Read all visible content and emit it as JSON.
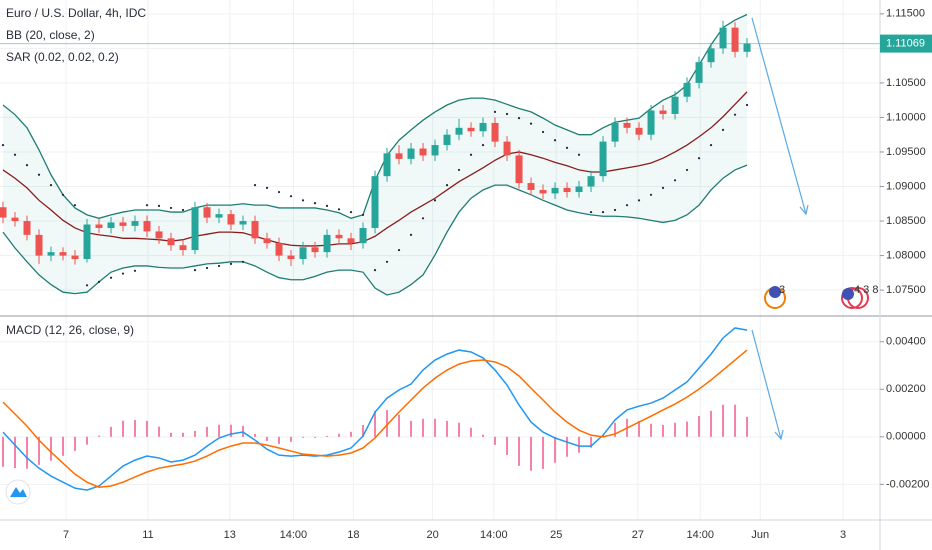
{
  "chart_data": [
    {
      "type": "candlestick",
      "title": "Euro / U.S. Dollar, 4h, IDC",
      "x": [
        0,
        1,
        2,
        3,
        4,
        5,
        6,
        7,
        8,
        9,
        10,
        11,
        12,
        13,
        14,
        15,
        16,
        17,
        18,
        19,
        20,
        21,
        22,
        23,
        24,
        25,
        26,
        27,
        28,
        29,
        30,
        31,
        32,
        33,
        34,
        35,
        36,
        37,
        38,
        39,
        40,
        41,
        42,
        43,
        44,
        45,
        46,
        47,
        48,
        49,
        50,
        51,
        52,
        53,
        54,
        55,
        56,
        57,
        58,
        59,
        60,
        61,
        62
      ],
      "open": [
        1.087,
        1.0855,
        1.085,
        1.083,
        1.08,
        1.0805,
        1.08,
        1.0795,
        1.0845,
        1.084,
        1.0848,
        1.0843,
        1.085,
        1.0835,
        1.0825,
        1.0815,
        1.0808,
        1.087,
        1.0855,
        1.086,
        1.0845,
        1.085,
        1.0825,
        1.0818,
        1.08,
        1.0795,
        1.0812,
        1.0805,
        1.083,
        1.0825,
        1.0818,
        1.084,
        1.0915,
        1.0948,
        1.094,
        1.0955,
        1.0945,
        1.096,
        1.0975,
        1.0985,
        1.098,
        1.0992,
        1.0965,
        1.0945,
        1.0905,
        1.0895,
        1.089,
        1.0898,
        1.0892,
        1.09,
        1.0915,
        1.0965,
        1.0992,
        1.0985,
        1.0975,
        1.101,
        1.1005,
        1.103,
        1.105,
        1.108,
        1.11,
        1.113,
        1.1095
      ],
      "high": [
        1.0878,
        1.0863,
        1.0858,
        1.0838,
        1.0813,
        1.0812,
        1.0808,
        1.0853,
        1.0853,
        1.0856,
        1.0856,
        1.0858,
        1.0858,
        1.0843,
        1.0833,
        1.0823,
        1.0878,
        1.0876,
        1.0868,
        1.0866,
        1.0858,
        1.0858,
        1.0833,
        1.0826,
        1.0808,
        1.082,
        1.082,
        1.0838,
        1.0838,
        1.0833,
        1.0848,
        1.0923,
        1.0956,
        1.096,
        1.0963,
        1.0963,
        1.0968,
        1.0983,
        1.0998,
        1.0993,
        1.1,
        1.1,
        1.0973,
        1.0953,
        1.0913,
        1.0903,
        1.0906,
        1.0906,
        1.0908,
        1.0923,
        1.0973,
        1.1,
        1.1,
        1.0993,
        1.1018,
        1.1018,
        1.1038,
        1.1058,
        1.1088,
        1.1108,
        1.114,
        1.1138,
        1.1115
      ],
      "low": [
        1.0847,
        1.0842,
        1.0822,
        1.0788,
        1.0792,
        1.0793,
        1.0787,
        1.079,
        1.0833,
        1.0832,
        1.0835,
        1.0835,
        1.0827,
        1.0817,
        1.0807,
        1.08,
        1.0802,
        1.0847,
        1.0847,
        1.0837,
        1.0837,
        1.0817,
        1.081,
        1.0792,
        1.0785,
        1.0787,
        1.0797,
        1.0797,
        1.0817,
        1.0808,
        1.081,
        1.0832,
        1.0907,
        1.0932,
        1.0932,
        1.0937,
        1.0937,
        1.0952,
        1.0967,
        1.0972,
        1.0972,
        1.0957,
        1.0937,
        1.0897,
        1.0887,
        1.0882,
        1.0882,
        1.0884,
        1.0884,
        1.0892,
        1.0907,
        1.0957,
        1.0977,
        1.0967,
        1.0967,
        1.0997,
        1.0997,
        1.1022,
        1.1042,
        1.1072,
        1.1092,
        1.1087,
        1.1087
      ],
      "close": [
        1.0855,
        1.085,
        1.083,
        1.08,
        1.0805,
        1.08,
        1.0795,
        1.0845,
        1.084,
        1.0848,
        1.0843,
        1.085,
        1.0835,
        1.0825,
        1.0815,
        1.0808,
        1.087,
        1.0855,
        1.086,
        1.0845,
        1.085,
        1.0825,
        1.0818,
        1.08,
        1.0795,
        1.0812,
        1.0805,
        1.083,
        1.0825,
        1.0818,
        1.084,
        1.0915,
        1.0948,
        1.094,
        1.0955,
        1.0945,
        1.096,
        1.0975,
        1.0985,
        1.098,
        1.0992,
        1.0965,
        1.0945,
        1.0905,
        1.0895,
        1.089,
        1.0898,
        1.0892,
        1.09,
        1.0915,
        1.0965,
        1.0992,
        1.0985,
        1.0975,
        1.101,
        1.1005,
        1.103,
        1.105,
        1.108,
        1.11,
        1.113,
        1.1095,
        1.1107
      ],
      "up_color": "#26a69a",
      "down_color": "#ef5350",
      "overlays": [
        {
          "name": "BB (20, close, 2)",
          "type": "band",
          "color": "#1f7d73",
          "basis_color": "#8a1c1c",
          "fill": "rgba(38,166,154,0.07)",
          "upper": [
            1.1018,
            1.1004,
            1.0985,
            1.0953,
            1.0917,
            1.0888,
            1.0869,
            1.0859,
            1.0854,
            1.0859,
            1.0863,
            1.0866,
            1.0866,
            1.0866,
            1.0863,
            1.0863,
            1.0869,
            1.0873,
            1.0873,
            1.0873,
            1.0875,
            1.0873,
            1.0873,
            1.0869,
            1.0869,
            1.0869,
            1.0869,
            1.0866,
            1.0862,
            1.0854,
            1.0859,
            1.0909,
            1.0945,
            1.0967,
            1.0982,
            1.0996,
            1.1008,
            1.1018,
            1.1025,
            1.1028,
            1.1028,
            1.1025,
            1.1019,
            1.1013,
            1.1008,
            1.0999,
            1.0989,
            1.0982,
            1.0975,
            1.0975,
            1.0985,
            1.0993,
            1.0996,
            1.0999,
            1.1013,
            1.1025,
            1.1033,
            1.1047,
            1.1076,
            1.1105,
            1.113,
            1.1141,
            1.1149
          ],
          "basis": [
            1.0924,
            1.0912,
            1.0898,
            1.088,
            1.0866,
            1.0851,
            1.084,
            1.0833,
            1.083,
            1.0828,
            1.0825,
            1.0825,
            1.0824,
            1.0823,
            1.0821,
            1.0823,
            1.0828,
            1.0831,
            1.0834,
            1.0834,
            1.0833,
            1.0828,
            1.0823,
            1.0818,
            1.0815,
            1.0814,
            1.0814,
            1.0815,
            1.0817,
            1.0817,
            1.082,
            1.0828,
            1.084,
            1.0851,
            1.0863,
            1.0873,
            1.0883,
            1.0895,
            1.0907,
            1.0917,
            1.0927,
            1.0938,
            1.0947,
            1.095,
            1.0946,
            1.0941,
            1.0935,
            1.093,
            1.0924,
            1.0921,
            1.0921,
            1.0924,
            1.0927,
            1.093,
            1.0934,
            1.0941,
            1.095,
            1.096,
            1.0972,
            1.0985,
            1.1001,
            1.1019,
            1.1037
          ],
          "lower": [
            1.0834,
            1.0811,
            1.0791,
            1.0772,
            1.0758,
            1.0747,
            1.0745,
            1.0747,
            1.0762,
            1.0776,
            1.0782,
            1.0785,
            1.0785,
            1.0783,
            1.0782,
            1.0782,
            1.0785,
            1.0788,
            1.0789,
            1.0791,
            1.0791,
            1.0785,
            1.0776,
            1.0768,
            1.0765,
            1.0765,
            1.077,
            1.0776,
            1.0779,
            1.0779,
            1.0776,
            1.0753,
            1.0743,
            1.0747,
            1.0758,
            1.0772,
            1.0801,
            1.0834,
            1.0863,
            1.0883,
            1.0895,
            1.0902,
            1.0902,
            1.0895,
            1.0888,
            1.088,
            1.0873,
            1.0866,
            1.0862,
            1.0859,
            1.0857,
            1.0857,
            1.0856,
            1.0854,
            1.0851,
            1.0848,
            1.0851,
            1.0859,
            1.0873,
            1.0895,
            1.0912,
            1.0924,
            1.0931
          ]
        },
        {
          "name": "SAR (0.02, 0.02, 0.2)",
          "type": "dots",
          "color": "#1a2540",
          "values": [
            1.096,
            1.0946,
            1.0931,
            1.0917,
            1.0902,
            1.0888,
            1.0873,
            1.0757,
            1.0762,
            1.0768,
            1.0774,
            1.0778,
            1.0873,
            1.0872,
            1.0869,
            1.0866,
            1.0779,
            1.0782,
            1.0785,
            1.0788,
            1.0791,
            1.0902,
            1.0898,
            1.0892,
            1.0886,
            1.088,
            1.0876,
            1.0872,
            1.0867,
            1.0863,
            1.0859,
            1.0779,
            1.0791,
            1.0808,
            1.083,
            1.0854,
            1.088,
            1.0902,
            1.0924,
            1.0946,
            1.096,
            1.1008,
            1.1005,
            1.0999,
            1.0991,
            1.0979,
            1.0967,
            1.0956,
            1.0946,
            1.0863,
            1.0863,
            1.0866,
            1.0873,
            1.088,
            1.0888,
            1.0898,
            1.0909,
            1.0924,
            1.0941,
            1.096,
            1.0982,
            1.1004,
            1.1018
          ]
        }
      ],
      "last_price": 1.11069,
      "events": [
        "3",
        "4 3 8"
      ],
      "xlim": [
        -0.25,
        73.08
      ],
      "xticks": [
        {
          "value": 5.25,
          "label": "7"
        },
        {
          "value": 12.08,
          "label": "11"
        },
        {
          "value": 18.9,
          "label": "13"
        },
        {
          "value": 24.2,
          "label": "14:00"
        },
        {
          "value": 29.2,
          "label": "18"
        },
        {
          "value": 35.8,
          "label": "20"
        },
        {
          "value": 40.9,
          "label": "14:00"
        },
        {
          "value": 46.1,
          "label": "25"
        },
        {
          "value": 52.9,
          "label": "27"
        },
        {
          "value": 58.1,
          "label": "14:00"
        },
        {
          "value": 63.1,
          "label": "Jun"
        },
        {
          "value": 70,
          "label": "3"
        }
      ],
      "ylim": [
        1.0714,
        1.117
      ],
      "yticks": [
        {
          "value": 1.115,
          "label": "1.11500"
        },
        {
          "value": 1.11,
          "label": "1.11000"
        },
        {
          "value": 1.105,
          "label": "1.10500"
        },
        {
          "value": 1.1,
          "label": "1.10000"
        },
        {
          "value": 1.095,
          "label": "1.09500"
        },
        {
          "value": 1.09,
          "label": "1.09000"
        },
        {
          "value": 1.085,
          "label": "1.08500"
        },
        {
          "value": 1.08,
          "label": "1.08000"
        },
        {
          "value": 1.075,
          "label": "1.07500"
        }
      ],
      "grid": true
    },
    {
      "type": "line",
      "title": "MACD (12, 26, close, 9)",
      "histogram": {
        "color": "#f06292",
        "values": [
          -0.00126,
          -0.00131,
          -0.00134,
          -0.00118,
          -0.00101,
          -0.0008,
          -0.00059,
          -0.00033,
          5e-05,
          0.00042,
          0.00068,
          0.00071,
          0.00067,
          0.00043,
          0.00017,
          0.00017,
          0.00025,
          0.00042,
          0.00051,
          0.00051,
          0.00046,
          0.00012,
          -0.00017,
          -0.0003,
          -0.00021,
          -4e-05,
          -4e-05,
          4e-05,
          0.00013,
          0.00021,
          0.0005,
          0.00109,
          0.00113,
          0.00093,
          0.00067,
          0.00076,
          0.00076,
          0.00067,
          0.00059,
          0.00038,
          9e-05,
          -0.00034,
          -0.00076,
          -0.00122,
          -0.00143,
          -0.00135,
          -0.00109,
          -0.00084,
          -0.00067,
          -0.00046,
          7e-05,
          0.00059,
          0.00076,
          0.00067,
          0.00055,
          0.0005,
          0.00059,
          0.00064,
          0.00088,
          0.00109,
          0.00135,
          0.00135,
          0.00084
        ]
      },
      "series": [
        {
          "color": "#2196f3",
          "values": [
            0.0002,
            -0.00035,
            -0.00089,
            -0.00132,
            -0.00165,
            -0.00191,
            -0.00216,
            -0.00224,
            -0.00207,
            -0.00165,
            -0.00123,
            -0.00098,
            -0.00081,
            -0.00089,
            -0.00106,
            -0.00098,
            -0.00077,
            -0.00039,
            -5e-05,
            0.00012,
            0.0002,
            -0.00014,
            -0.00052,
            -0.00077,
            -0.00081,
            -0.00077,
            -0.00081,
            -0.00077,
            -0.00064,
            -0.00047,
            3e-05,
            0.00104,
            0.00163,
            0.00197,
            0.00222,
            0.00281,
            0.00323,
            0.00348,
            0.00365,
            0.00357,
            0.00332,
            0.00281,
            0.00218,
            0.00134,
            0.00062,
            0.0002,
            -5e-05,
            -0.00022,
            -0.00039,
            -0.00039,
            7e-05,
            0.00071,
            0.00113,
            0.00129,
            0.00142,
            0.00163,
            0.00197,
            0.00231,
            0.00289,
            0.00348,
            0.00416,
            0.00458,
            0.00449
          ]
        },
        {
          "color": "#ff6d00",
          "values": [
            0.00146,
            0.00096,
            0.00045,
            -0.00014,
            -0.00064,
            -0.00111,
            -0.00157,
            -0.00191,
            -0.00212,
            -0.00207,
            -0.00191,
            -0.00169,
            -0.00148,
            -0.00132,
            -0.00123,
            -0.00115,
            -0.00102,
            -0.00081,
            -0.00056,
            -0.00039,
            -0.00026,
            -0.00026,
            -0.00035,
            -0.00047,
            -0.0006,
            -0.00073,
            -0.00077,
            -0.00081,
            -0.00077,
            -0.00068,
            -0.00047,
            -5e-05,
            0.0005,
            0.00104,
            0.00155,
            0.00205,
            0.00247,
            0.00281,
            0.00306,
            0.00319,
            0.00323,
            0.00315,
            0.00294,
            0.00256,
            0.00205,
            0.00155,
            0.00104,
            0.00062,
            0.00028,
            7e-05,
            0.0,
            0.00012,
            0.00037,
            0.00062,
            0.00087,
            0.00113,
            0.00138,
            0.00167,
            0.00201,
            0.00239,
            0.00281,
            0.00323,
            0.00365
          ]
        }
      ],
      "ylim": [
        -0.0035,
        0.005
      ],
      "yticks": [
        {
          "value": 0.004,
          "label": "0.00400"
        },
        {
          "value": 0.002,
          "label": "0.00200"
        },
        {
          "value": 0,
          "label": "0.00000"
        },
        {
          "value": -0.002,
          "label": "-0.00200"
        }
      ],
      "grid": true
    }
  ]
}
